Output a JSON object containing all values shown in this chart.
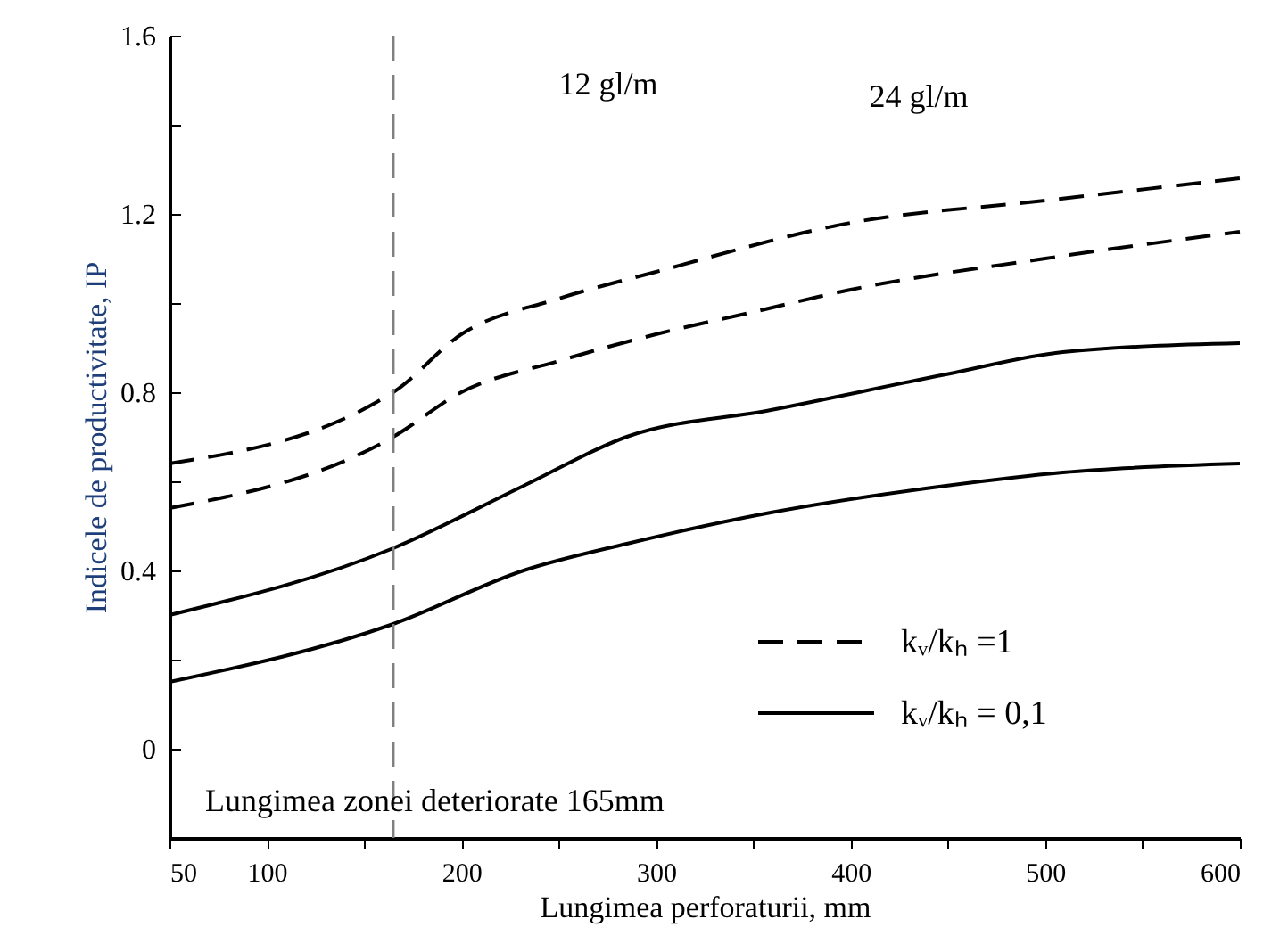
{
  "chart_data": {
    "type": "line",
    "xlabel": "Lungimea perforaturii, mm",
    "ylabel": "Indicele de productivitate, IP",
    "xlim": [
      50,
      600
    ],
    "xticks": [
      50,
      100,
      {
        "value": 150,
        "label": null
      },
      200,
      {
        "value": 250,
        "label": null
      },
      300,
      {
        "value": 350,
        "label": null
      },
      400,
      {
        "value": 450,
        "label": null
      },
      500,
      {
        "value": 550,
        "label": null
      },
      600
    ],
    "ylim": [
      -0.2,
      1.6
    ],
    "yticks": [
      0,
      {
        "value": 0.2,
        "label": null
      },
      0.4,
      {
        "value": 0.6,
        "label": null
      },
      0.8,
      {
        "value": 1.0,
        "label": null
      },
      1.2,
      {
        "value": 1.4,
        "label": null
      },
      1.6
    ],
    "series": [
      {
        "name": "kᵥ/kₕ =1",
        "color": "#000000",
        "line_style": "dashed",
        "x": [
          50,
          165,
          200,
          250,
          300,
          400,
          500,
          600
        ],
        "values": [
          0.64,
          0.8,
          0.93,
          1.01,
          1.07,
          1.18,
          1.23,
          1.28
        ]
      },
      {
        "color": "#000000",
        "line_style": "dashed",
        "x": [
          50,
          165,
          200,
          250,
          300,
          350,
          400,
          500,
          600
        ],
        "values": [
          0.54,
          0.7,
          0.8,
          0.87,
          0.93,
          0.98,
          1.03,
          1.1,
          1.16
        ]
      },
      {
        "name": "kᵥ/kₕ = 0,1",
        "color": "#000000",
        "line_style": "solid",
        "x": [
          50,
          165,
          232,
          285,
          359,
          449,
          509,
          600
        ],
        "values": [
          0.3,
          0.45,
          0.59,
          0.7,
          0.76,
          0.84,
          0.89,
          0.91
        ]
      },
      {
        "color": "#000000",
        "line_style": "solid",
        "x": [
          50,
          165,
          232,
          285,
          359,
          449,
          509,
          600
        ],
        "values": [
          0.15,
          0.28,
          0.4,
          0.46,
          0.53,
          0.59,
          0.62,
          0.64
        ]
      }
    ],
    "ref_lines": [
      {
        "axis": "x",
        "value": 165,
        "label": "Lungimea zonei deteriorate 165mm",
        "color": "#808080",
        "line_style": "dashed"
      }
    ],
    "annotations": [
      "12 gl/m",
      "24 gl/m"
    ],
    "legend": "bottom right",
    "grid": false
  }
}
